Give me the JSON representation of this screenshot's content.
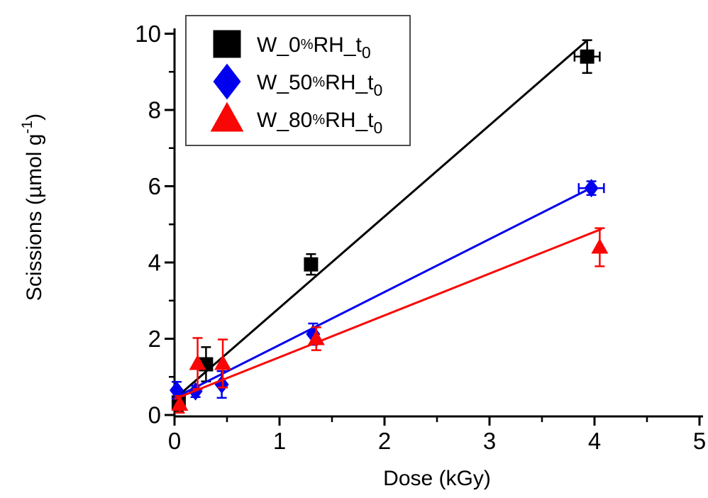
{
  "chart_data": {
    "type": "scatter",
    "title": "",
    "xlabel": "Dose (kGy)",
    "ylabel": "Scissions (µmol g-1)",
    "x_axis": {
      "min": 0,
      "max": 5,
      "major_ticks": [
        0,
        1,
        2,
        3,
        4,
        5
      ],
      "tick_labels": [
        "0",
        "1",
        "2",
        "3",
        "4",
        "5"
      ],
      "minor_ticks": [
        0.5,
        1.5,
        2.5,
        3.5,
        4.5
      ]
    },
    "y_axis": {
      "min": 0,
      "max": 10,
      "major_ticks": [
        0,
        2,
        4,
        6,
        8,
        10
      ],
      "tick_labels": [
        "0",
        "2",
        "4",
        "6",
        "8",
        "10"
      ],
      "minor_ticks": [
        1,
        3,
        5,
        7,
        9
      ],
      "label_main": "Scissions (µmol g",
      "label_sup": "-1",
      "label_close": ")"
    },
    "grid": false,
    "legend": {
      "position": "top-left"
    },
    "series": [
      {
        "name": "W_0%RH_t0",
        "marker": "square",
        "color": "#000000",
        "points": [
          {
            "x": 0.04,
            "y": 0.33,
            "ey": 0.22
          },
          {
            "x": 0.3,
            "y": 1.33,
            "ey": 0.45
          },
          {
            "x": 1.3,
            "y": 3.95,
            "ey": 0.27
          },
          {
            "x": 3.93,
            "y": 9.4,
            "ey": 0.43,
            "ex": 0.12
          }
        ],
        "fit_line": {
          "x1": 0,
          "y1": 0.42,
          "x2": 3.92,
          "y2": 9.8
        }
      },
      {
        "name": "W_50%RH_t0",
        "marker": "diamond",
        "color": "#0000ee",
        "points": [
          {
            "x": 0.02,
            "y": 0.65,
            "ey": 0.22
          },
          {
            "x": 0.2,
            "y": 0.62,
            "ey": 0.15
          },
          {
            "x": 0.45,
            "y": 0.8,
            "ey": 0.35
          },
          {
            "x": 1.32,
            "y": 2.12,
            "ey": 0.28
          },
          {
            "x": 3.97,
            "y": 5.95,
            "ey": 0.18,
            "ex": 0.12
          }
        ],
        "fit_line": {
          "x1": 0,
          "y1": 0.45,
          "x2": 4.0,
          "y2": 6.0
        }
      },
      {
        "name": "W_80%RH_t0",
        "marker": "triangle",
        "color": "#f90606",
        "points": [
          {
            "x": 0.05,
            "y": 0.28,
            "ey": 0.22
          },
          {
            "x": 0.22,
            "y": 1.35,
            "ey": 0.67
          },
          {
            "x": 0.46,
            "y": 1.35,
            "ey": 0.63
          },
          {
            "x": 1.35,
            "y": 2.0,
            "ey": 0.3
          },
          {
            "x": 4.05,
            "y": 4.4,
            "ey": 0.5
          }
        ],
        "fit_line": {
          "x1": 0,
          "y1": 0.42,
          "x2": 4.07,
          "y2": 4.88
        }
      }
    ]
  }
}
